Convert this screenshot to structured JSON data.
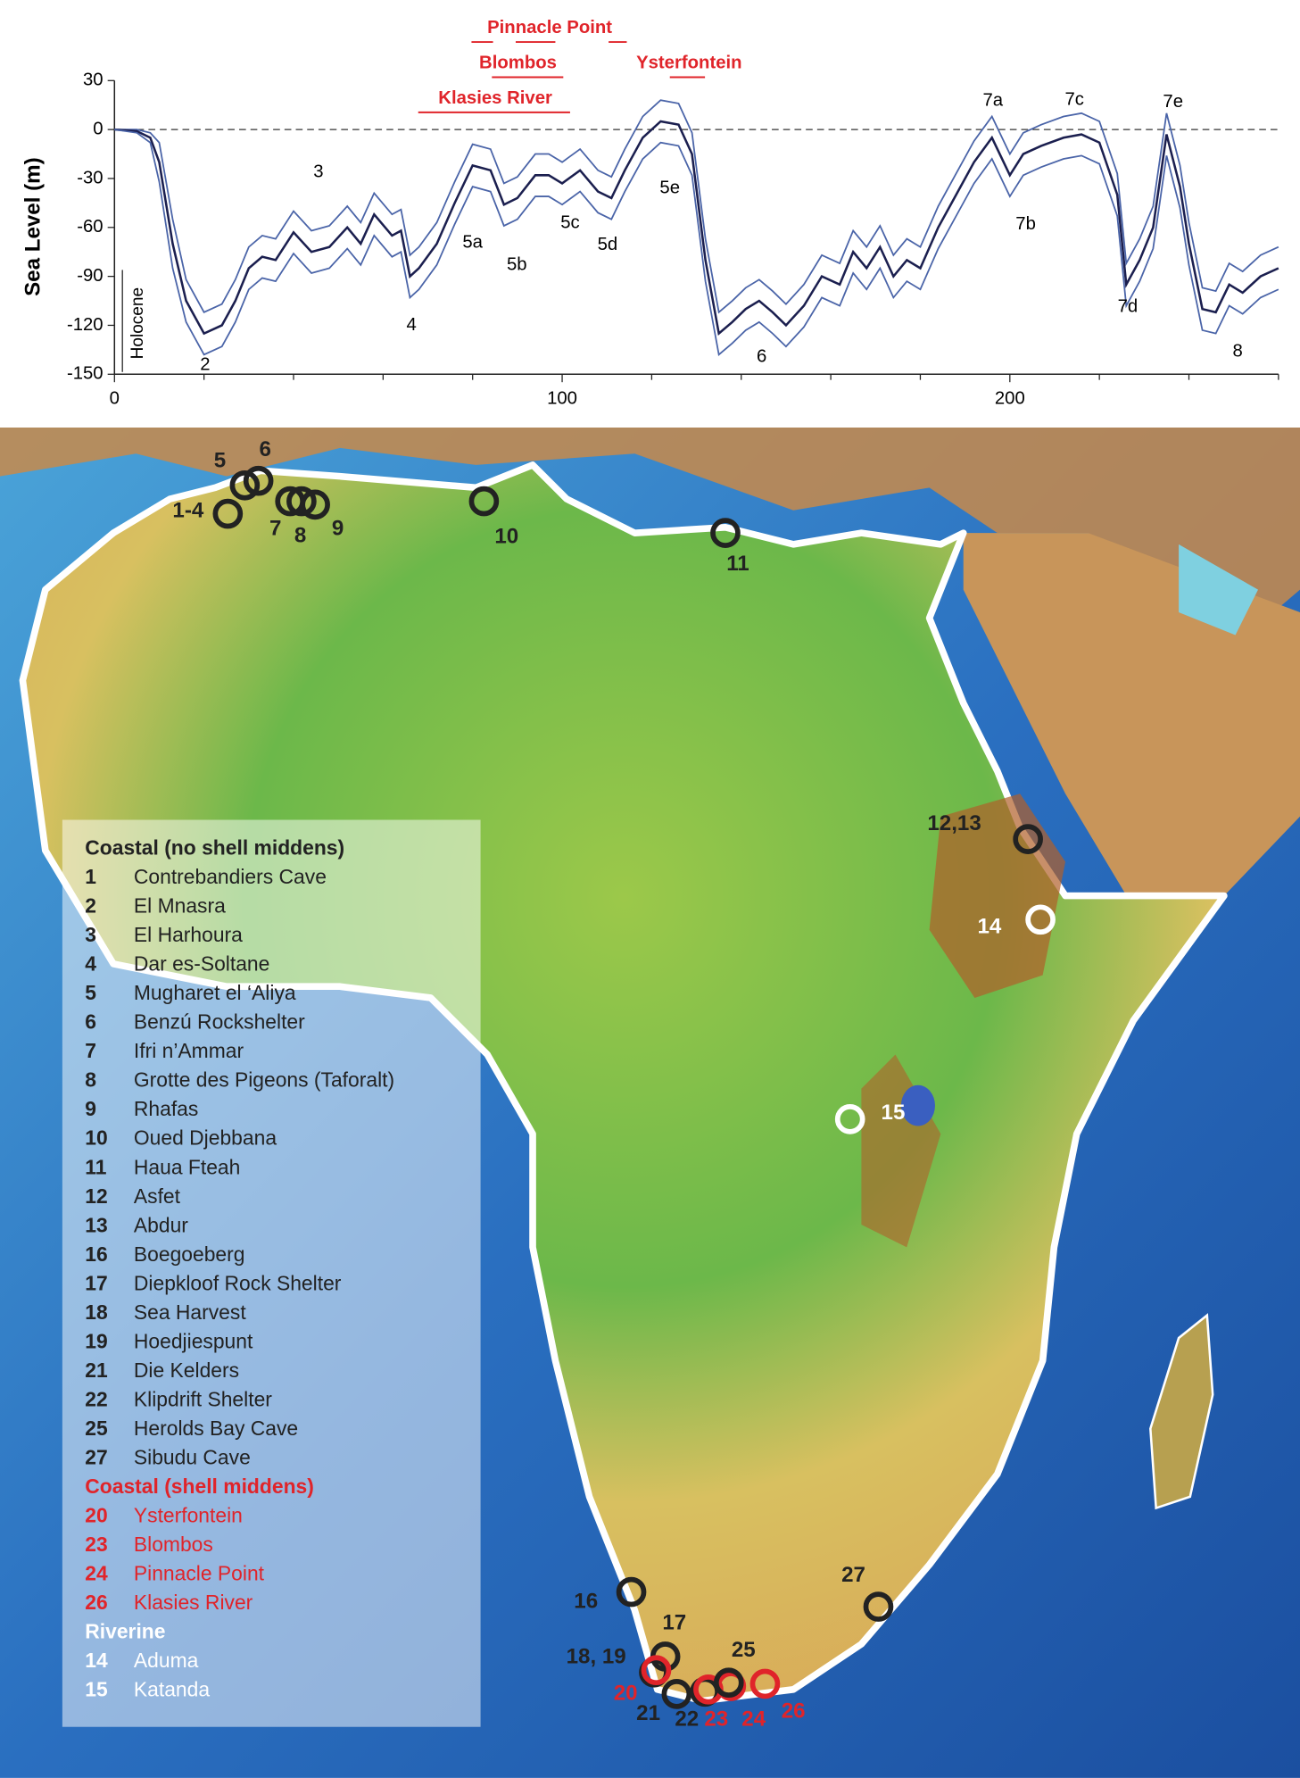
{
  "chart_data": {
    "type": "line",
    "y_label": "Sea Level (m)",
    "xlim": [
      0,
      260
    ],
    "ylim": [
      -150,
      30
    ],
    "xticks": [
      0,
      100,
      200
    ],
    "xticks_minor": [
      20,
      40,
      60,
      80,
      120,
      140,
      160,
      180,
      220,
      240,
      260
    ],
    "yticks": [
      -150,
      -120,
      -90,
      -60,
      -30,
      0,
      30
    ],
    "zero_line": true,
    "x": [
      0,
      5,
      8,
      10,
      13,
      16,
      20,
      24,
      27,
      30,
      33,
      36,
      40,
      44,
      48,
      52,
      55,
      58,
      62,
      64,
      66,
      68,
      72,
      76,
      80,
      84,
      87,
      90,
      94,
      97,
      100,
      104,
      108,
      111,
      114,
      118,
      122,
      126,
      129,
      132,
      135,
      138,
      141,
      144,
      147,
      150,
      154,
      158,
      162,
      165,
      168,
      171,
      174,
      177,
      180,
      184,
      188,
      192,
      196,
      200,
      203,
      207,
      212,
      216,
      220,
      224,
      226,
      229,
      232,
      235,
      238,
      240,
      243,
      246,
      249,
      252,
      256,
      260
    ],
    "series": [
      {
        "color": "#4a64a8",
        "values": [
          0,
          0,
          -2,
          -8,
          -55,
          -92,
          -112,
          -107,
          -92,
          -72,
          -65,
          -67,
          -50,
          -62,
          -59,
          -47,
          -57,
          -39,
          -52,
          -49,
          -77,
          -72,
          -57,
          -32,
          -9,
          -12,
          -33,
          -29,
          -15,
          -15,
          -20,
          -12,
          -25,
          -29,
          -12,
          8,
          18,
          16,
          -2,
          -67,
          -112,
          -105,
          -97,
          -92,
          -99,
          -107,
          -95,
          -77,
          -82,
          -62,
          -72,
          -59,
          -77,
          -67,
          -72,
          -47,
          -27,
          -7,
          8,
          -15,
          -2,
          3,
          8,
          10,
          5,
          -27,
          -82,
          -67,
          -47,
          10,
          -22,
          -57,
          -97,
          -99,
          -82,
          -87,
          -77,
          -72
        ]
      },
      {
        "color": "#1b1f4f",
        "values": [
          0,
          -1,
          -5,
          -20,
          -70,
          -105,
          -125,
          -120,
          -105,
          -85,
          -78,
          -80,
          -63,
          -75,
          -72,
          -60,
          -70,
          -52,
          -65,
          -62,
          -90,
          -85,
          -70,
          -45,
          -22,
          -25,
          -46,
          -42,
          -28,
          -28,
          -33,
          -25,
          -38,
          -42,
          -25,
          -5,
          5,
          3,
          -15,
          -80,
          -125,
          -118,
          -110,
          -105,
          -112,
          -120,
          -108,
          -90,
          -95,
          -75,
          -85,
          -72,
          -90,
          -80,
          -85,
          -60,
          -40,
          -20,
          -5,
          -28,
          -15,
          -10,
          -5,
          -3,
          -8,
          -40,
          -95,
          -80,
          -60,
          -3,
          -35,
          -70,
          -110,
          -112,
          -95,
          -100,
          -90,
          -85
        ]
      },
      {
        "color": "#4a64a8",
        "values": [
          0,
          -2,
          -8,
          -32,
          -85,
          -118,
          -138,
          -133,
          -118,
          -98,
          -91,
          -93,
          -76,
          -88,
          -85,
          -73,
          -83,
          -65,
          -78,
          -75,
          -103,
          -98,
          -83,
          -58,
          -35,
          -38,
          -59,
          -55,
          -41,
          -41,
          -46,
          -38,
          -51,
          -55,
          -38,
          -18,
          -8,
          -10,
          -28,
          -93,
          -138,
          -131,
          -123,
          -118,
          -125,
          -133,
          -121,
          -103,
          -108,
          -88,
          -98,
          -85,
          -103,
          -93,
          -98,
          -73,
          -53,
          -33,
          -18,
          -41,
          -28,
          -23,
          -18,
          -16,
          -21,
          -53,
          -108,
          -93,
          -73,
          -16,
          -48,
          -83,
          -123,
          -125,
          -108,
          -113,
          -103,
          -98
        ]
      }
    ],
    "annotations": [
      "2",
      "3",
      "4",
      "5a",
      "5b",
      "5c",
      "5d",
      "5e",
      "6",
      "7a",
      "7b",
      "7c",
      "7d",
      "7e",
      "8",
      "Holocene"
    ],
    "site_labels": [
      "Pinnacle Point",
      "Blombos",
      "Klasies River",
      "Ysterfontein"
    ]
  },
  "map": {
    "sites": [
      {
        "label": "1-4",
        "color": "#222222"
      },
      {
        "label": "5",
        "color": "#222222"
      },
      {
        "label": "6",
        "color": "#222222"
      },
      {
        "label": "7",
        "color": "#222222"
      },
      {
        "label": "8",
        "color": "#222222"
      },
      {
        "label": "9",
        "color": "#222222"
      },
      {
        "label": "10",
        "color": "#222222"
      },
      {
        "label": "11",
        "color": "#222222"
      },
      {
        "label": "12,13",
        "color": "#222222"
      },
      {
        "label": "14",
        "color": "#ffffff"
      },
      {
        "label": "15",
        "color": "#ffffff"
      },
      {
        "label": "16",
        "color": "#222222"
      },
      {
        "label": "17",
        "color": "#222222"
      },
      {
        "label": "18, 19",
        "color": "#222222"
      },
      {
        "label": "20",
        "color": "#e0242a"
      },
      {
        "label": "21",
        "color": "#222222"
      },
      {
        "label": "22",
        "color": "#222222"
      },
      {
        "label": "23",
        "color": "#e0242a"
      },
      {
        "label": "24",
        "color": "#e0242a"
      },
      {
        "label": "25",
        "color": "#222222"
      },
      {
        "label": "26",
        "color": "#e0242a"
      },
      {
        "label": "27",
        "color": "#222222"
      }
    ],
    "legend": [
      {
        "title": "Coastal (no shell middens)",
        "color": "#222222",
        "items": [
          [
            "1",
            "Contrebandiers Cave"
          ],
          [
            "2",
            "El Mnasra"
          ],
          [
            "3",
            "El Harhoura"
          ],
          [
            "4",
            "Dar es-Soltane"
          ],
          [
            "5",
            "Mugharet el ‘Aliya"
          ],
          [
            "6",
            "Benzú Rockshelter"
          ],
          [
            "7",
            "Ifri n’Ammar"
          ],
          [
            "8",
            "Grotte des Pigeons (Taforalt)"
          ],
          [
            "9",
            "Rhafas"
          ],
          [
            "10",
            "Oued Djebbana"
          ],
          [
            "11",
            "Haua Fteah"
          ],
          [
            "12",
            "Asfet"
          ],
          [
            "13",
            "Abdur"
          ],
          [
            "16",
            "Boegoeberg"
          ],
          [
            "17",
            "Diepkloof Rock Shelter"
          ],
          [
            "18",
            "Sea Harvest"
          ],
          [
            "19",
            "Hoedjiespunt"
          ],
          [
            "21",
            "Die Kelders"
          ],
          [
            "22",
            "Klipdrift Shelter"
          ],
          [
            "25",
            "Herolds Bay Cave"
          ],
          [
            "27",
            "Sibudu Cave"
          ]
        ]
      },
      {
        "title": "Coastal (shell middens)",
        "color": "#e0242a",
        "items": [
          [
            "20",
            "Ysterfontein"
          ],
          [
            "23",
            "Blombos"
          ],
          [
            "24",
            "Pinnacle Point"
          ],
          [
            "26",
            "Klasies River"
          ]
        ]
      },
      {
        "title": "Riverine",
        "color": "#ffffff",
        "items": [
          [
            "14",
            "Aduma"
          ],
          [
            "15",
            "Katanda"
          ]
        ]
      }
    ]
  }
}
